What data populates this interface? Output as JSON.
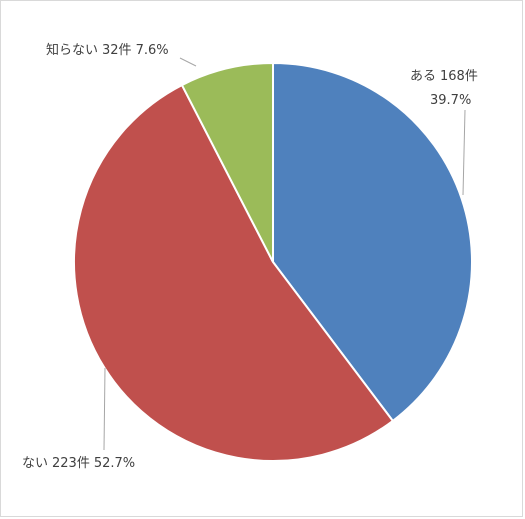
{
  "chart_data": {
    "type": "pie",
    "categories": [
      "ある",
      "ない",
      "知らない"
    ],
    "values": [
      168,
      223,
      32
    ],
    "value_labels": [
      "168件",
      "223件",
      "32件"
    ],
    "percent_labels": [
      "39.7%",
      "52.7%",
      "7.6%"
    ],
    "colors": [
      "#4f81bd",
      "#c0504d",
      "#9bbb59"
    ]
  }
}
